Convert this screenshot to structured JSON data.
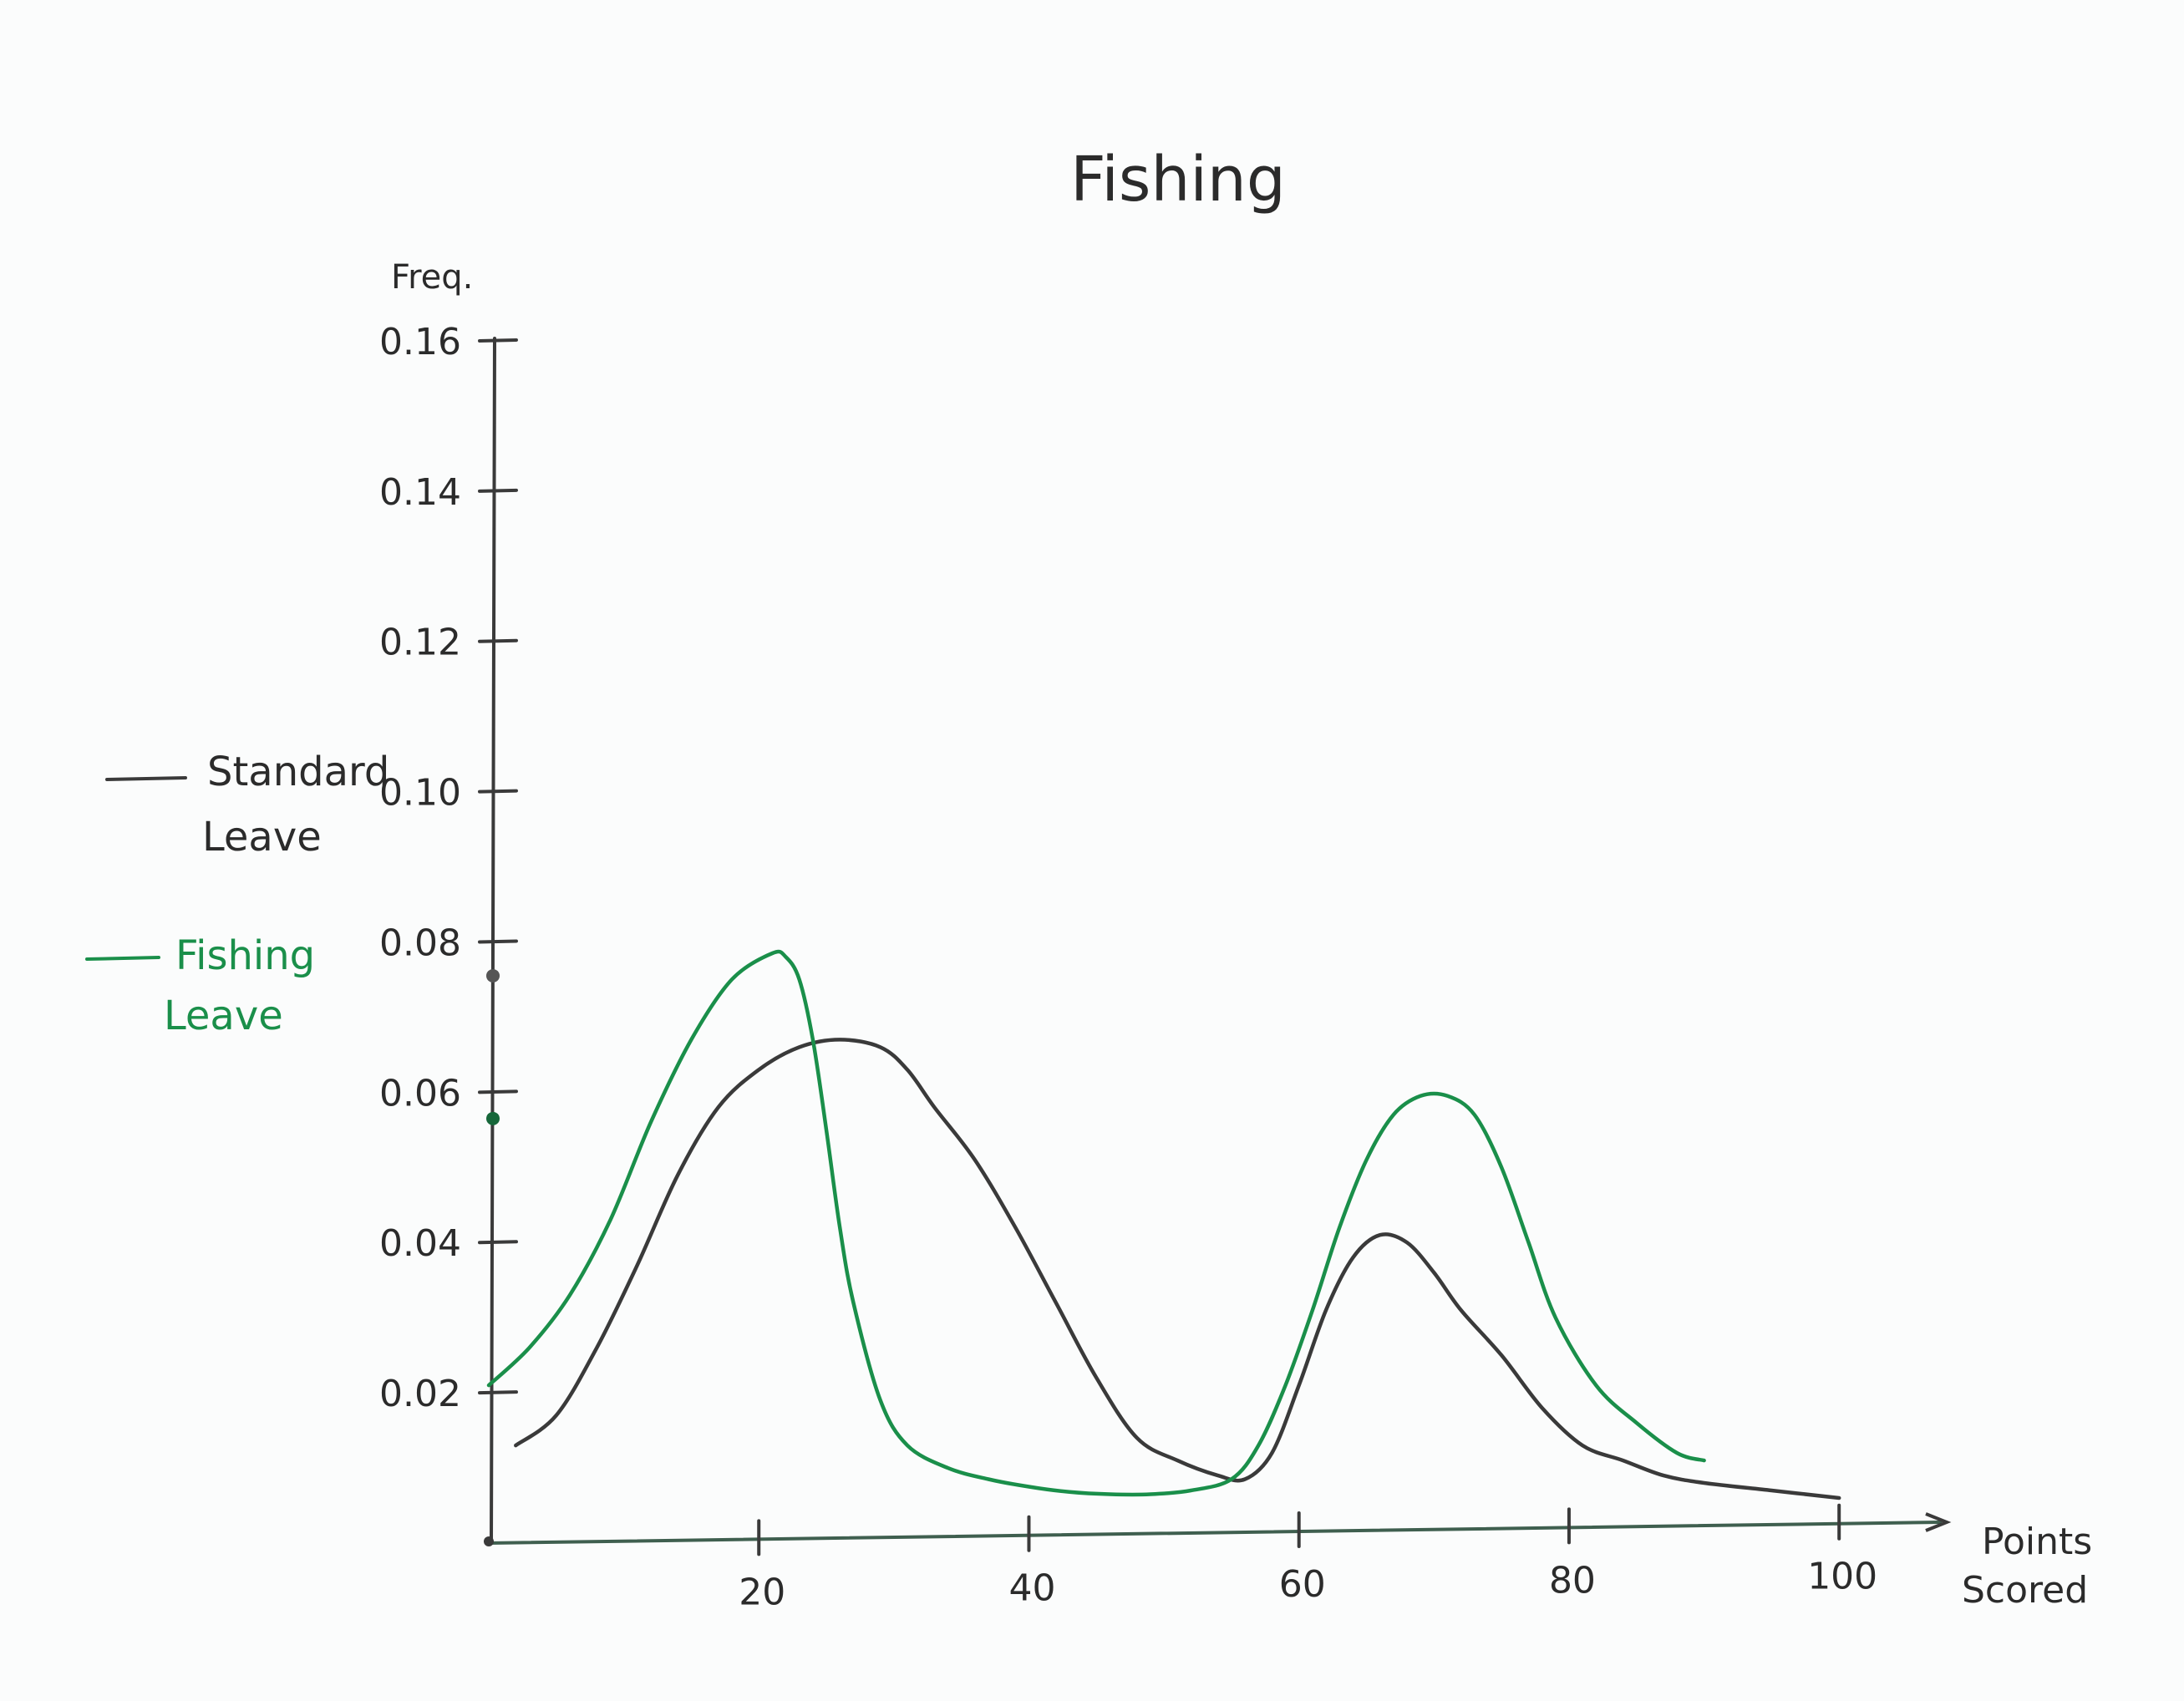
{
  "chart_data": {
    "type": "line",
    "title": "Fishing",
    "xlabel": "Points Scored",
    "ylabel": "Freq.",
    "xlim": [
      0,
      105
    ],
    "ylim": [
      0,
      0.17
    ],
    "xticks": [
      20,
      40,
      60,
      80,
      100
    ],
    "xtick_labels": [
      "20",
      "40",
      "60",
      "80",
      "100"
    ],
    "yticks": [
      0.02,
      0.04,
      0.06,
      0.08,
      0.1,
      0.12,
      0.14,
      0.16
    ],
    "ytick_labels": [
      "0.02",
      "0.04",
      "0.06",
      "0.08",
      "0.10",
      "0.12",
      "0.14",
      "0.16"
    ],
    "grid": false,
    "legend_position": "left",
    "series": [
      {
        "name": "Standard Leave",
        "color": "#3a3a3a",
        "x": [
          2,
          5,
          8,
          11,
          14,
          17,
          20,
          23,
          26,
          29,
          31,
          33,
          36,
          39,
          42,
          45,
          48,
          51,
          54,
          56,
          58,
          60,
          62,
          64,
          66,
          68,
          70,
          72,
          75,
          78,
          81,
          84,
          87,
          90,
          95,
          100
        ],
        "y": [
          0.013,
          0.017,
          0.026,
          0.037,
          0.049,
          0.058,
          0.063,
          0.066,
          0.067,
          0.066,
          0.063,
          0.058,
          0.051,
          0.042,
          0.032,
          0.022,
          0.014,
          0.011,
          0.009,
          0.0085,
          0.012,
          0.021,
          0.031,
          0.038,
          0.041,
          0.04,
          0.036,
          0.031,
          0.025,
          0.018,
          0.013,
          0.011,
          0.009,
          0.008,
          0.007,
          0.006
        ]
      },
      {
        "name": "Fishing Leave",
        "color": "#1a8f4a",
        "x": [
          0,
          3,
          6,
          9,
          12,
          15,
          18,
          21,
          22,
          23,
          24,
          25,
          26,
          27,
          29,
          31,
          34,
          37,
          40,
          43,
          46,
          49,
          52,
          55,
          57,
          59,
          61,
          63,
          65,
          67,
          69,
          71,
          73,
          75,
          77,
          79,
          82,
          85,
          88,
          90
        ],
        "y": [
          0.021,
          0.026,
          0.033,
          0.043,
          0.056,
          0.067,
          0.075,
          0.0785,
          0.078,
          0.075,
          0.067,
          0.055,
          0.042,
          0.032,
          0.019,
          0.013,
          0.01,
          0.0085,
          0.0075,
          0.0068,
          0.0065,
          0.0065,
          0.007,
          0.0085,
          0.013,
          0.021,
          0.031,
          0.042,
          0.051,
          0.057,
          0.0595,
          0.0595,
          0.057,
          0.05,
          0.04,
          0.03,
          0.021,
          0.016,
          0.012,
          0.011
        ]
      }
    ],
    "axis_markers": [
      {
        "series": "Standard Leave",
        "y": 0.0755
      },
      {
        "series": "Fishing Leave",
        "y": 0.0565
      }
    ]
  }
}
